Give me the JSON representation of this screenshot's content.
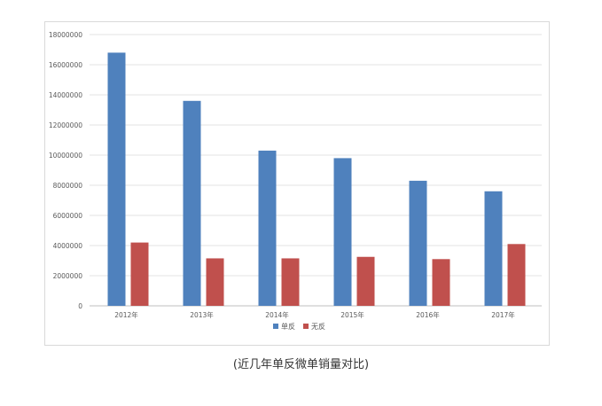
{
  "caption": "(近几年单反微单销量对比)",
  "chart_data": {
    "type": "bar",
    "title": "",
    "xlabel": "",
    "ylabel": "",
    "categories": [
      "2012年",
      "2013年",
      "2014年",
      "2015年",
      "2016年",
      "2017年"
    ],
    "series": [
      {
        "name": "单反",
        "color": "#4f81bd",
        "values": [
          16800000,
          13600000,
          10300000,
          9800000,
          8300000,
          7600000
        ]
      },
      {
        "name": "无反",
        "color": "#c0504d",
        "values": [
          4200000,
          3150000,
          3150000,
          3250000,
          3100000,
          4100000
        ]
      }
    ],
    "ylim": [
      0,
      18000000
    ],
    "yticks": [
      "0",
      "2000000",
      "4000000",
      "6000000",
      "8000000",
      "10000000",
      "12000000",
      "14000000",
      "16000000",
      "18000000"
    ],
    "grid": true,
    "legend_position": "bottom"
  }
}
